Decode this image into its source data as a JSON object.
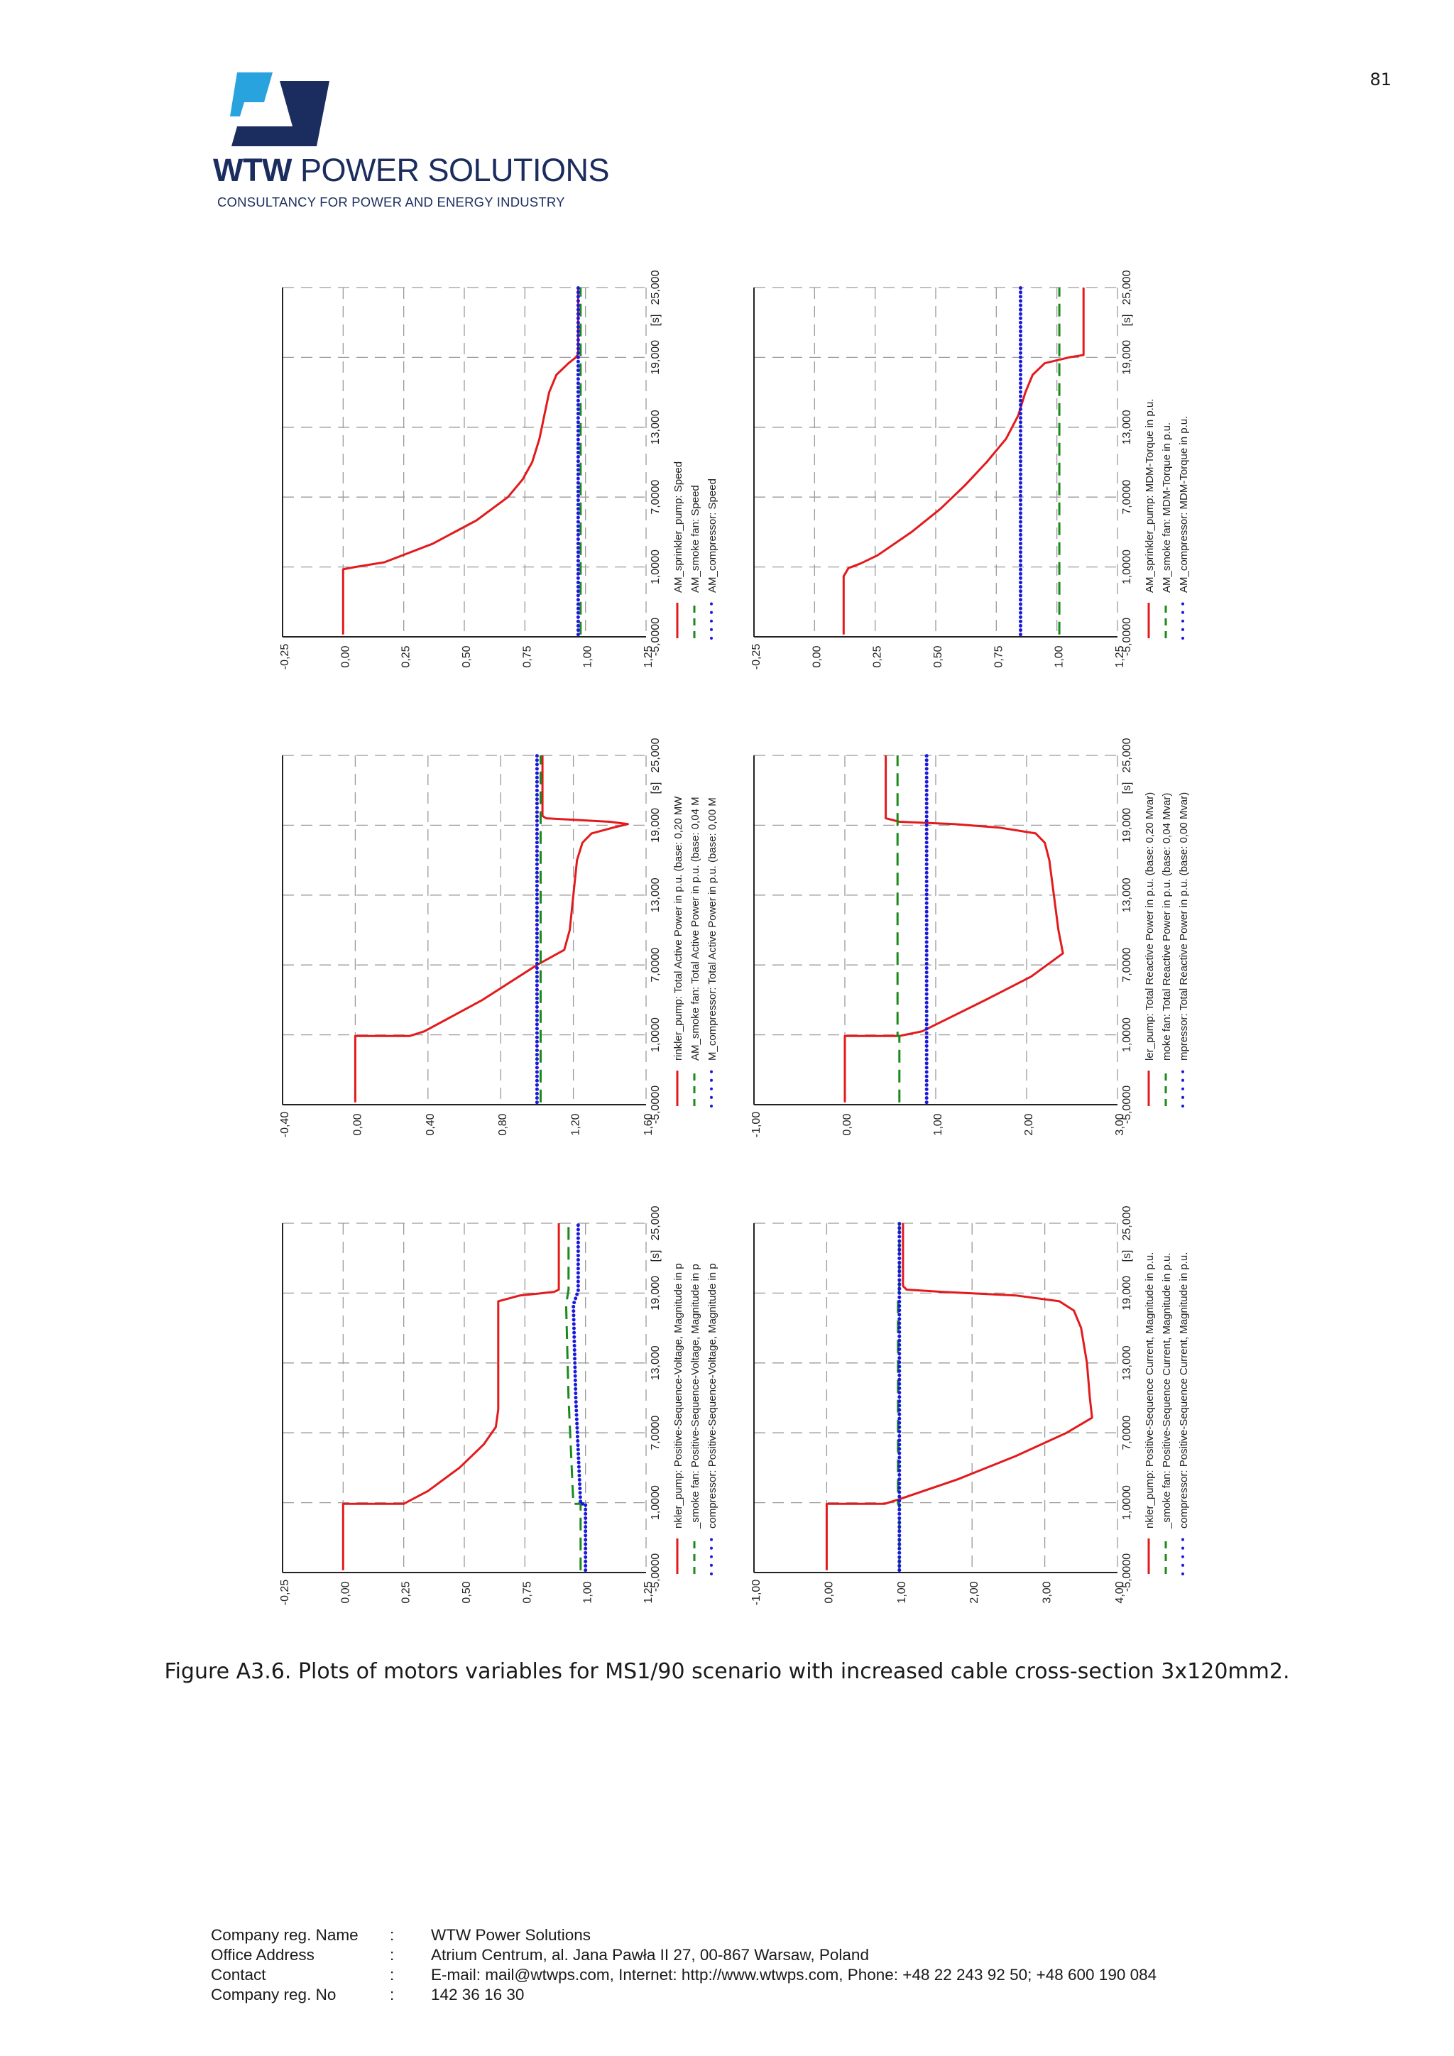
{
  "page_number": "81",
  "logo": {
    "brand_bold": "WTW",
    "brand_rest": " POWER SOLUTIONS",
    "tagline": "CONSULTANCY FOR POWER AND ENERGY INDUSTRY",
    "colors": {
      "light": "#29a3dd",
      "dark": "#1b2d5e"
    }
  },
  "caption": "Figure A3.6. Plots of motors variables for MS1/90 scenario with increased cable cross-section 3x120mm2.",
  "footer": [
    {
      "label": "Company reg. Name",
      "sep": ":",
      "value": "WTW Power Solutions"
    },
    {
      "label": "Office Address",
      "sep": ":",
      "value": "Atrium Centrum, al. Jana Pawła II 27, 00-867 Warsaw, Poland"
    },
    {
      "label": "Contact",
      "sep": ":",
      "value": "E-mail: mail@wtwps.com, Internet: http://www.wtwps.com, Phone: +48 22 243 92 50; +48 600 190 084"
    },
    {
      "label": "Company reg. No",
      "sep": ":",
      "value": "142 36 16 30"
    }
  ],
  "chart_data": [
    {
      "type": "line",
      "title": "Speed",
      "time_ticks": [
        "-5,0000",
        "1,0000",
        "7,0000",
        "13,000",
        "19,000",
        "25,000"
      ],
      "time_unit": "[s]",
      "xlim": [
        -5,
        25
      ],
      "y_ticks": [
        "-0,25",
        "0,00",
        "0,25",
        "0,50",
        "0,75",
        "1,00",
        "1,25"
      ],
      "ylim": [
        -0.25,
        1.25
      ],
      "series": [
        {
          "name": "AM_sprinkler_pump: Speed",
          "color": "#e31a1c",
          "style": "solid",
          "points": [
            [
              -4.8,
              0
            ],
            [
              0.8,
              0
            ],
            [
              1.0,
              0.05
            ],
            [
              1.4,
              0.17
            ],
            [
              3,
              0.37
            ],
            [
              5,
              0.55
            ],
            [
              7,
              0.68
            ],
            [
              8.5,
              0.74
            ],
            [
              10,
              0.78
            ],
            [
              12,
              0.81
            ],
            [
              14,
              0.83
            ],
            [
              16,
              0.85
            ],
            [
              17.5,
              0.88
            ],
            [
              18.5,
              0.93
            ],
            [
              19,
              0.96
            ],
            [
              19.3,
              0.97
            ],
            [
              25,
              0.97
            ]
          ]
        },
        {
          "name": "AM_smoke fan: Speed",
          "color": "#1a8a1a",
          "style": "dashed",
          "points": [
            [
              -4.8,
              0.98
            ],
            [
              25,
              0.98
            ]
          ]
        },
        {
          "name": "AM_compressor: Speed",
          "color": "#1a1adc",
          "style": "dotted",
          "points": [
            [
              -4.8,
              0.97
            ],
            [
              25,
              0.97
            ]
          ]
        }
      ]
    },
    {
      "type": "line",
      "title": "MDM-Torque",
      "time_ticks": [
        "-5,0000",
        "1,0000",
        "7,0000",
        "13,000",
        "19,000",
        "25,000"
      ],
      "time_unit": "[s]",
      "xlim": [
        -5,
        25
      ],
      "y_ticks": [
        "-0,25",
        "0,00",
        "0,25",
        "0,50",
        "0,75",
        "1,00",
        "1,25"
      ],
      "ylim": [
        -0.25,
        1.25
      ],
      "series": [
        {
          "name": "AM_sprinkler_pump: MDM-Torque in p.u.",
          "color": "#e31a1c",
          "style": "solid",
          "points": [
            [
              -4.8,
              0.12
            ],
            [
              0.2,
              0.12
            ],
            [
              0.9,
              0.14
            ],
            [
              1.3,
              0.19
            ],
            [
              2,
              0.26
            ],
            [
              4,
              0.4
            ],
            [
              6,
              0.52
            ],
            [
              8,
              0.62
            ],
            [
              10,
              0.71
            ],
            [
              12,
              0.79
            ],
            [
              14,
              0.84
            ],
            [
              16,
              0.87
            ],
            [
              17.5,
              0.9
            ],
            [
              18.5,
              0.95
            ],
            [
              19,
              1.05
            ],
            [
              19.2,
              1.11
            ],
            [
              25,
              1.11
            ]
          ]
        },
        {
          "name": "AM_smoke fan: MDM-Torque in p.u.",
          "color": "#1a8a1a",
          "style": "dashed",
          "points": [
            [
              -4.8,
              1.01
            ],
            [
              25,
              1.01
            ]
          ]
        },
        {
          "name": "AM_compressor: MDM-Torque in p.u.",
          "color": "#1a1adc",
          "style": "dotted",
          "points": [
            [
              -4.8,
              0.85
            ],
            [
              25,
              0.85
            ]
          ]
        }
      ]
    },
    {
      "type": "line",
      "title": "Total Active Power",
      "time_ticks": [
        "-5,0000",
        "1,0000",
        "7,0000",
        "13,000",
        "19,000",
        "25,000"
      ],
      "time_unit": "[s]",
      "xlim": [
        -5,
        25
      ],
      "y_ticks": [
        "-0,40",
        "0,00",
        "0,40",
        "0,80",
        "1,20",
        "1,60"
      ],
      "ylim": [
        -0.4,
        1.6
      ],
      "series": [
        {
          "name": "rinkler_pump: Total Active Power in p.u. (base: 0,20 MW",
          "color": "#e31a1c",
          "style": "solid",
          "points": [
            [
              -4.8,
              0
            ],
            [
              0.9,
              0
            ],
            [
              0.9,
              0.3
            ],
            [
              1.3,
              0.38
            ],
            [
              4,
              0.7
            ],
            [
              7,
              1.0
            ],
            [
              8.3,
              1.15
            ],
            [
              10,
              1.18
            ],
            [
              13,
              1.2
            ],
            [
              16,
              1.22
            ],
            [
              17.5,
              1.25
            ],
            [
              18.3,
              1.3
            ],
            [
              18.8,
              1.42
            ],
            [
              19.1,
              1.5
            ],
            [
              19.3,
              1.4
            ],
            [
              19.6,
              1.05
            ],
            [
              19.8,
              1.03
            ],
            [
              25,
              1.03
            ]
          ]
        },
        {
          "name": "AM_smoke fan: Total Active Power in p.u. (base: 0,04 M",
          "color": "#1a8a1a",
          "style": "dashed",
          "points": [
            [
              -4.8,
              1.02
            ],
            [
              25,
              1.02
            ]
          ]
        },
        {
          "name": "M_compressor: Total Active Power in p.u. (base: 0,00 M",
          "color": "#1a1adc",
          "style": "dotted",
          "points": [
            [
              -4.8,
              1.0
            ],
            [
              25,
              1.0
            ]
          ]
        }
      ]
    },
    {
      "type": "line",
      "title": "Total Reactive Power",
      "time_ticks": [
        "-5,0000",
        "1,0000",
        "7,0000",
        "13,000",
        "19,000",
        "25,000"
      ],
      "time_unit": "[s]",
      "xlim": [
        -5,
        25
      ],
      "y_ticks": [
        "-1,00",
        "0,00",
        "1,00",
        "2,00",
        "3,00"
      ],
      "ylim": [
        -1,
        3
      ],
      "series": [
        {
          "name": "ler_pump: Total Reactive Power in p.u. (base: 0,20 Mvar)",
          "color": "#e31a1c",
          "style": "solid",
          "points": [
            [
              -4.8,
              0
            ],
            [
              0.9,
              0
            ],
            [
              0.9,
              0.6
            ],
            [
              1.3,
              0.85
            ],
            [
              4,
              1.55
            ],
            [
              6,
              2.05
            ],
            [
              8,
              2.4
            ],
            [
              10,
              2.35
            ],
            [
              13,
              2.3
            ],
            [
              16,
              2.25
            ],
            [
              17.5,
              2.2
            ],
            [
              18.3,
              2.1
            ],
            [
              18.8,
              1.7
            ],
            [
              19.1,
              1.2
            ],
            [
              19.3,
              0.6
            ],
            [
              19.6,
              0.45
            ],
            [
              25,
              0.45
            ]
          ]
        },
        {
          "name": "moke fan: Total Reactive Power in p.u. (base: 0,04 Mvar)",
          "color": "#1a8a1a",
          "style": "dashed",
          "points": [
            [
              -4.8,
              0.6
            ],
            [
              0.9,
              0.6
            ],
            [
              0.9,
              0.58
            ],
            [
              25,
              0.58
            ]
          ]
        },
        {
          "name": "mpressor: Total Reactive Power in p.u. (base: 0,00 Mvar)",
          "color": "#1a1adc",
          "style": "dotted",
          "points": [
            [
              -4.8,
              0.9
            ],
            [
              25,
              0.9
            ]
          ]
        }
      ]
    },
    {
      "type": "line",
      "title": "Positive-Sequence-Voltage",
      "time_ticks": [
        "-5,0000",
        "1,0000",
        "7,0000",
        "13,000",
        "19,000",
        "25,000"
      ],
      "time_unit": "[s]",
      "xlim": [
        -5,
        25
      ],
      "y_ticks": [
        "-0,25",
        "0,00",
        "0,25",
        "0,50",
        "0,75",
        "1,00",
        "1,25"
      ],
      "ylim": [
        -0.25,
        1.25
      ],
      "series": [
        {
          "name": "nkler_pump: Positive-Sequence-Voltage, Magnitude in p",
          "color": "#e31a1c",
          "style": "solid",
          "points": [
            [
              -4.8,
              0
            ],
            [
              0.9,
              0
            ],
            [
              0.9,
              0.25
            ],
            [
              2,
              0.35
            ],
            [
              4,
              0.48
            ],
            [
              6,
              0.58
            ],
            [
              7.5,
              0.63
            ],
            [
              9,
              0.64
            ],
            [
              18.3,
              0.64
            ],
            [
              18.8,
              0.73
            ],
            [
              19.1,
              0.87
            ],
            [
              19.3,
              0.89
            ],
            [
              25,
              0.89
            ]
          ]
        },
        {
          "name": "_smoke fan: Positive-Sequence-Voltage, Magnitude in p",
          "color": "#1a8a1a",
          "style": "dashed",
          "points": [
            [
              -4.8,
              0.98
            ],
            [
              0.9,
              0.98
            ],
            [
              0.9,
              0.95
            ],
            [
              10,
              0.93
            ],
            [
              18,
              0.92
            ],
            [
              19.3,
              0.93
            ],
            [
              25,
              0.93
            ]
          ]
        },
        {
          "name": "compressor: Positive-Sequence-Voltage, Magnitude in p",
          "color": "#1a1adc",
          "style": "dotted",
          "points": [
            [
              -4.8,
              1.0
            ],
            [
              0.9,
              1.0
            ],
            [
              0.9,
              0.98
            ],
            [
              10,
              0.96
            ],
            [
              18,
              0.95
            ],
            [
              19.2,
              0.97
            ],
            [
              25,
              0.97
            ]
          ]
        }
      ]
    },
    {
      "type": "line",
      "title": "Positive-Sequence Current",
      "time_ticks": [
        "-5,0000",
        "1,0000",
        "7,0000",
        "13,000",
        "19,000",
        "25,000"
      ],
      "time_unit": "[s]",
      "xlim": [
        -5,
        25
      ],
      "y_ticks": [
        "-1,00",
        "0,00",
        "1,00",
        "2,00",
        "3,00",
        "4,00"
      ],
      "ylim": [
        -1,
        4
      ],
      "series": [
        {
          "name": "nkler_pump: Positive-Sequence Current, Magnitude in p.u.",
          "color": "#e31a1c",
          "style": "solid",
          "points": [
            [
              -4.8,
              0
            ],
            [
              0.9,
              0
            ],
            [
              0.9,
              0.8
            ],
            [
              1.3,
              1.0
            ],
            [
              3,
              1.8
            ],
            [
              5,
              2.6
            ],
            [
              7,
              3.3
            ],
            [
              8.3,
              3.65
            ],
            [
              10,
              3.62
            ],
            [
              13,
              3.58
            ],
            [
              16,
              3.5
            ],
            [
              17.5,
              3.4
            ],
            [
              18.3,
              3.2
            ],
            [
              18.8,
              2.6
            ],
            [
              19.1,
              1.6
            ],
            [
              19.3,
              1.1
            ],
            [
              19.6,
              1.05
            ],
            [
              25,
              1.05
            ]
          ]
        },
        {
          "name": "_smoke fan: Positive-Sequence Current, Magnitude in p.u.",
          "color": "#1a8a1a",
          "style": "dashed",
          "points": [
            [
              -4.8,
              1.0
            ],
            [
              0.9,
              1.0
            ],
            [
              0.9,
              0.98
            ],
            [
              18.8,
              0.98
            ],
            [
              19.3,
              1.0
            ],
            [
              25,
              1.0
            ]
          ]
        },
        {
          "name": "compressor: Positive-Sequence Current, Magnitude in p.u.",
          "color": "#1a1adc",
          "style": "dotted",
          "points": [
            [
              -4.8,
              1.0
            ],
            [
              25,
              1.0
            ]
          ]
        }
      ]
    }
  ]
}
